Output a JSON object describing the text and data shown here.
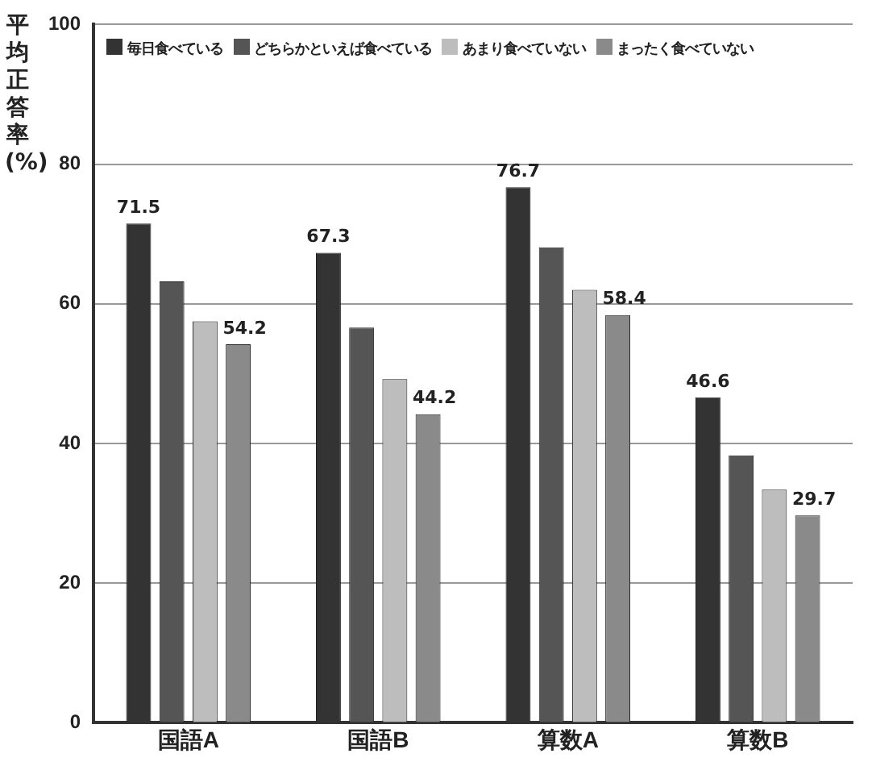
{
  "chart_data": {
    "type": "bar",
    "ylabel": "平均正答率(%)",
    "categories": [
      "国語A",
      "国語B",
      "算数A",
      "算数B"
    ],
    "series": [
      {
        "name": "毎日食べている",
        "color": "#333333",
        "values": [
          71.5,
          67.3,
          76.7,
          46.6
        ],
        "value_labels": [
          "71.5",
          "67.3",
          "76.7",
          "46.6"
        ]
      },
      {
        "name": "どちらかといえば食べている",
        "color": "#555555",
        "values": [
          63.2,
          56.6,
          68.1,
          38.3
        ]
      },
      {
        "name": "あまり食べていない",
        "color": "#bdbdbd",
        "values": [
          57.5,
          49.2,
          62.0,
          33.4
        ]
      },
      {
        "name": "まったく食べていない",
        "color": "#8a8a8a",
        "values": [
          54.2,
          44.2,
          58.4,
          29.7
        ],
        "value_labels": [
          "54.2",
          "44.2",
          "58.4",
          "29.7"
        ]
      }
    ],
    "ylim": [
      0,
      100
    ],
    "yticks": [
      0,
      20,
      40,
      60,
      80,
      100
    ],
    "grid": "y",
    "legend": "top"
  }
}
